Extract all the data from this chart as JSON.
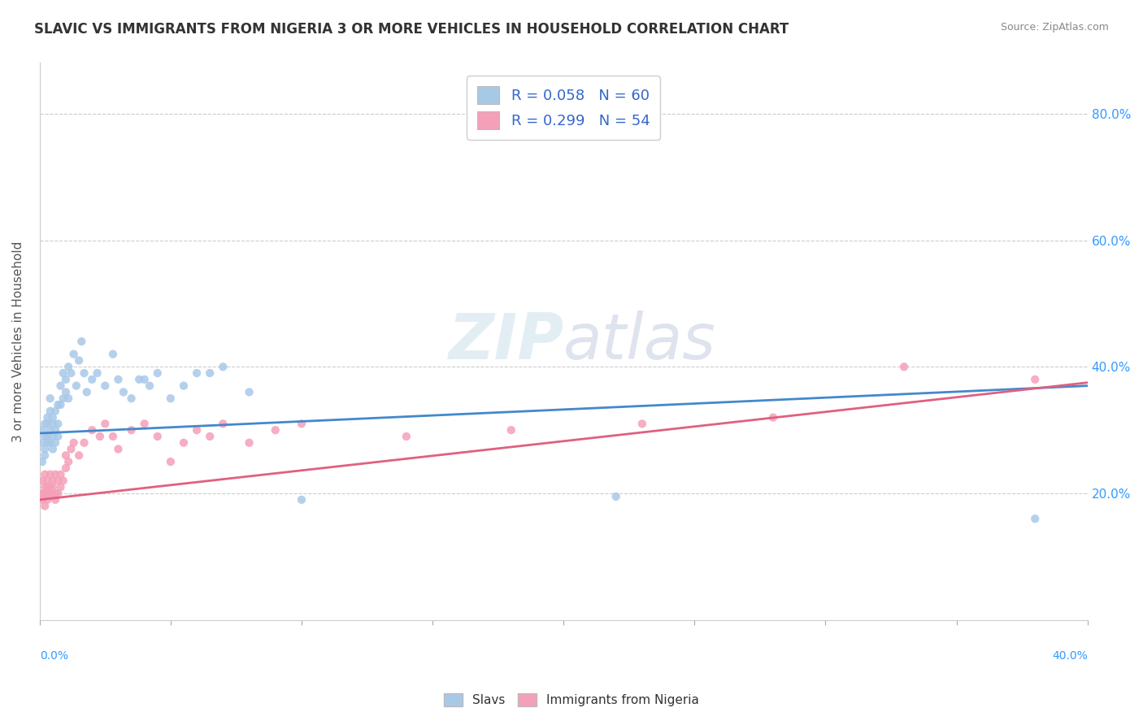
{
  "title": "SLAVIC VS IMMIGRANTS FROM NIGERIA 3 OR MORE VEHICLES IN HOUSEHOLD CORRELATION CHART",
  "source": "Source: ZipAtlas.com",
  "ylabel": "3 or more Vehicles in Household",
  "xmin": 0.0,
  "xmax": 0.4,
  "ymin": 0.0,
  "ymax": 0.88,
  "right_yticks": [
    0.2,
    0.4,
    0.6,
    0.8
  ],
  "right_yticklabels": [
    "20.0%",
    "40.0%",
    "60.0%",
    "80.0%"
  ],
  "slavs_R": 0.058,
  "slavs_N": 60,
  "nigeria_R": 0.299,
  "nigeria_N": 54,
  "slavs_color": "#a8c8e8",
  "nigeria_color": "#f4a0b8",
  "slavs_line_color": "#4488cc",
  "nigeria_line_color": "#e06080",
  "legend_text_color": "#3366cc",
  "watermark": "ZIPatlas",
  "background_color": "#ffffff",
  "grid_color": "#cccccc",
  "slavs_x": [
    0.001,
    0.001,
    0.001,
    0.002,
    0.002,
    0.002,
    0.002,
    0.003,
    0.003,
    0.003,
    0.003,
    0.004,
    0.004,
    0.004,
    0.004,
    0.005,
    0.005,
    0.005,
    0.005,
    0.006,
    0.006,
    0.006,
    0.007,
    0.007,
    0.007,
    0.008,
    0.008,
    0.009,
    0.009,
    0.01,
    0.01,
    0.011,
    0.011,
    0.012,
    0.013,
    0.014,
    0.015,
    0.016,
    0.017,
    0.018,
    0.02,
    0.022,
    0.025,
    0.028,
    0.03,
    0.032,
    0.035,
    0.038,
    0.04,
    0.042,
    0.045,
    0.05,
    0.055,
    0.06,
    0.065,
    0.07,
    0.08,
    0.1,
    0.22,
    0.38
  ],
  "slavs_y": [
    0.28,
    0.3,
    0.25,
    0.31,
    0.29,
    0.27,
    0.26,
    0.32,
    0.29,
    0.31,
    0.28,
    0.35,
    0.3,
    0.28,
    0.33,
    0.31,
    0.29,
    0.27,
    0.32,
    0.33,
    0.3,
    0.28,
    0.34,
    0.31,
    0.29,
    0.37,
    0.34,
    0.35,
    0.39,
    0.38,
    0.36,
    0.4,
    0.35,
    0.39,
    0.42,
    0.37,
    0.41,
    0.44,
    0.39,
    0.36,
    0.38,
    0.39,
    0.37,
    0.42,
    0.38,
    0.36,
    0.35,
    0.38,
    0.38,
    0.37,
    0.39,
    0.35,
    0.37,
    0.39,
    0.39,
    0.4,
    0.36,
    0.19,
    0.195,
    0.16
  ],
  "nigeria_x": [
    0.001,
    0.001,
    0.001,
    0.002,
    0.002,
    0.002,
    0.002,
    0.003,
    0.003,
    0.003,
    0.003,
    0.004,
    0.004,
    0.004,
    0.005,
    0.005,
    0.005,
    0.006,
    0.006,
    0.006,
    0.007,
    0.007,
    0.008,
    0.008,
    0.009,
    0.01,
    0.01,
    0.011,
    0.012,
    0.013,
    0.015,
    0.017,
    0.02,
    0.023,
    0.025,
    0.028,
    0.03,
    0.035,
    0.04,
    0.045,
    0.05,
    0.055,
    0.06,
    0.065,
    0.07,
    0.08,
    0.09,
    0.1,
    0.14,
    0.18,
    0.23,
    0.28,
    0.33,
    0.38
  ],
  "nigeria_y": [
    0.22,
    0.2,
    0.19,
    0.21,
    0.23,
    0.2,
    0.18,
    0.22,
    0.2,
    0.21,
    0.19,
    0.23,
    0.21,
    0.2,
    0.22,
    0.2,
    0.21,
    0.23,
    0.2,
    0.19,
    0.22,
    0.2,
    0.23,
    0.21,
    0.22,
    0.24,
    0.26,
    0.25,
    0.27,
    0.28,
    0.26,
    0.28,
    0.3,
    0.29,
    0.31,
    0.29,
    0.27,
    0.3,
    0.31,
    0.29,
    0.25,
    0.28,
    0.3,
    0.29,
    0.31,
    0.28,
    0.3,
    0.31,
    0.29,
    0.3,
    0.31,
    0.32,
    0.4,
    0.38
  ]
}
